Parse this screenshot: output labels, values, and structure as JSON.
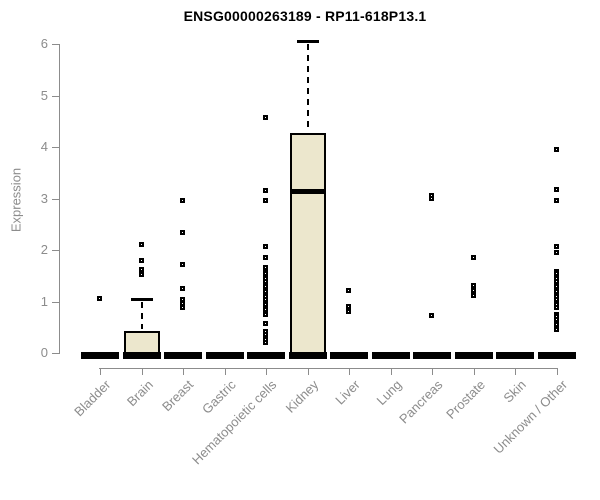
{
  "title": "ENSG00000263189 - RP11-618P13.1",
  "chart_data": {
    "type": "boxplot",
    "title": "ENSG00000263189 - RP11-618P13.1",
    "xlabel": "",
    "ylabel": "Expression",
    "ylim": [
      0,
      6
    ],
    "yticks": [
      0,
      1,
      2,
      3,
      4,
      5,
      6
    ],
    "grid": false,
    "legend": "none",
    "categories": [
      "Bladder",
      "Brain",
      "Breast",
      "Gastric",
      "Hematopoietic cells",
      "Kidney",
      "Liver",
      "Lung",
      "Pancreas",
      "Prostate",
      "Skin",
      "Unknown / Other"
    ],
    "boxes": [
      {
        "category": "Bladder",
        "q1": 0,
        "median": 0,
        "q3": 0,
        "whisker_low": 0,
        "whisker_high": 0,
        "outliers": [
          1.05
        ]
      },
      {
        "category": "Brain",
        "q1": 0,
        "median": 0,
        "q3": 0.43,
        "whisker_low": 0,
        "whisker_high": 1.05,
        "outliers": [
          2.1,
          1.78,
          1.62,
          1.52
        ]
      },
      {
        "category": "Breast",
        "q1": 0,
        "median": 0,
        "q3": 0,
        "whisker_low": 0,
        "whisker_high": 0,
        "outliers": [
          2.95,
          2.33,
          1.7,
          1.25,
          1.03,
          0.95,
          0.87
        ]
      },
      {
        "category": "Gastric",
        "q1": 0,
        "median": 0,
        "q3": 0,
        "whisker_low": 0,
        "whisker_high": 0,
        "outliers": []
      },
      {
        "category": "Hematopoietic cells",
        "q1": 0,
        "median": 0,
        "q3": 0,
        "whisker_low": 0,
        "whisker_high": 0,
        "outliers": [
          4.57,
          3.15,
          2.95,
          2.06,
          1.84,
          1.66,
          1.58,
          1.53,
          1.48,
          1.43,
          1.38,
          1.33,
          1.28,
          1.23,
          1.18,
          1.13,
          1.08,
          1.03,
          0.98,
          0.93,
          0.88,
          0.83,
          0.78,
          0.73,
          0.56,
          0.41,
          0.35,
          0.25,
          0.19
        ]
      },
      {
        "category": "Kidney",
        "q1": 0,
        "median": 3.15,
        "q3": 4.27,
        "whisker_low": 0,
        "whisker_high": 6.05,
        "outliers": []
      },
      {
        "category": "Liver",
        "q1": 0,
        "median": 0,
        "q3": 0,
        "whisker_low": 0,
        "whisker_high": 0,
        "outliers": [
          1.2,
          0.9,
          0.8
        ]
      },
      {
        "category": "Lung",
        "q1": 0,
        "median": 0,
        "q3": 0,
        "whisker_low": 0,
        "whisker_high": 0,
        "outliers": []
      },
      {
        "category": "Pancreas",
        "q1": 0,
        "median": 0,
        "q3": 0,
        "whisker_low": 0,
        "whisker_high": 0,
        "outliers": [
          3.05,
          3.0,
          0.72
        ]
      },
      {
        "category": "Prostate",
        "q1": 0,
        "median": 0,
        "q3": 0,
        "whisker_low": 0,
        "whisker_high": 0,
        "outliers": [
          1.85,
          1.3,
          1.2,
          1.11
        ]
      },
      {
        "category": "Skin",
        "q1": 0,
        "median": 0,
        "q3": 0,
        "whisker_low": 0,
        "whisker_high": 0,
        "outliers": []
      },
      {
        "category": "Unknown / Other",
        "q1": 0,
        "median": 0,
        "q3": 0,
        "whisker_low": 0,
        "whisker_high": 0,
        "outliers": [
          3.95,
          3.17,
          2.95,
          2.05,
          1.95,
          1.58,
          1.53,
          1.48,
          1.43,
          1.38,
          1.33,
          1.28,
          1.23,
          1.18,
          1.13,
          1.08,
          1.03,
          0.98,
          0.93,
          0.88,
          0.74,
          0.69,
          0.64,
          0.59,
          0.54,
          0.49,
          0.44
        ]
      }
    ],
    "colors": {
      "box_fill": "#ece7cd",
      "box_border": "#000000",
      "median": "#000000",
      "whisker": "#000000",
      "outlier_border": "#000000",
      "axis": "#8c8c8c",
      "tick_label": "#8c8c8c",
      "title": "#000000",
      "background": "#ffffff"
    }
  }
}
